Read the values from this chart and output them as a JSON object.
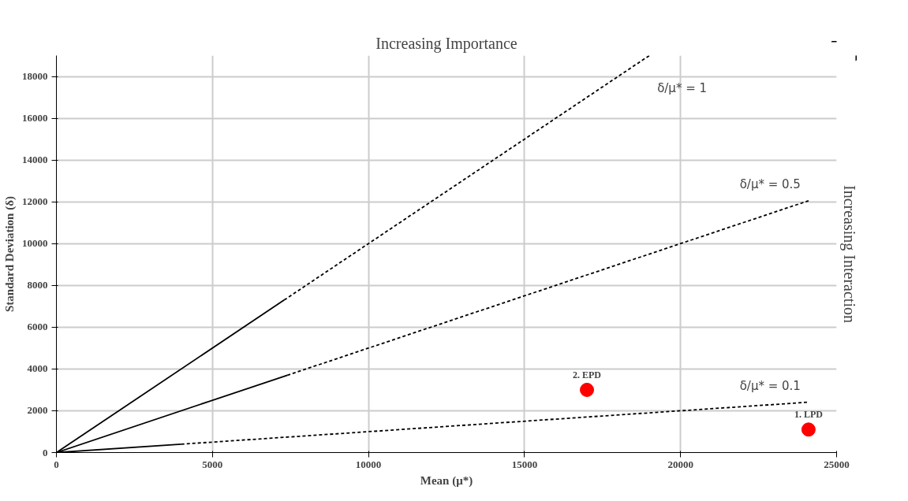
{
  "chart_data": {
    "type": "line",
    "xlabel": "Mean (μ*)",
    "ylabel": "Standard Deviation (δ)",
    "xlim": [
      0,
      25000
    ],
    "ylim": [
      0,
      19000
    ],
    "xticks": [
      0,
      5000,
      10000,
      15000,
      20000,
      25000
    ],
    "yticks": [
      0,
      2000,
      4000,
      6000,
      8000,
      10000,
      12000,
      14000,
      16000,
      18000
    ],
    "grid": true,
    "series": [
      {
        "color": "#000000",
        "line_style": "solid",
        "x": [
          0,
          7300
        ],
        "values": [
          0,
          7300
        ]
      },
      {
        "color": "#000000",
        "line_style": "dashed",
        "x": [
          7300,
          19000
        ],
        "values": [
          7300,
          19000
        ]
      },
      {
        "color": "#000000",
        "line_style": "solid",
        "x": [
          0,
          7400
        ],
        "values": [
          0,
          3700
        ]
      },
      {
        "color": "#000000",
        "line_style": "dashed",
        "x": [
          7400,
          24100
        ],
        "values": [
          3700,
          12050
        ]
      },
      {
        "color": "#000000",
        "line_style": "solid",
        "x": [
          0,
          4000
        ],
        "values": [
          0,
          400
        ]
      },
      {
        "color": "#000000",
        "line_style": "dashed",
        "x": [
          4000,
          24100
        ],
        "values": [
          400,
          2410
        ]
      },
      {
        "type": "scatter",
        "name": "2. EPD",
        "color": "#ff0000",
        "marker": "circle",
        "x": [
          17000
        ],
        "values": [
          3000
        ]
      },
      {
        "type": "scatter",
        "name": "1. LPD",
        "color": "#ff0000",
        "marker": "circle",
        "x": [
          24100
        ],
        "values": [
          1100
        ]
      }
    ],
    "annotations": [
      "δ/μ* = 1",
      "δ/μ* = 0.5",
      "δ/μ* = 0.1",
      "Increasing Importance",
      "Increasing Interaction"
    ]
  }
}
